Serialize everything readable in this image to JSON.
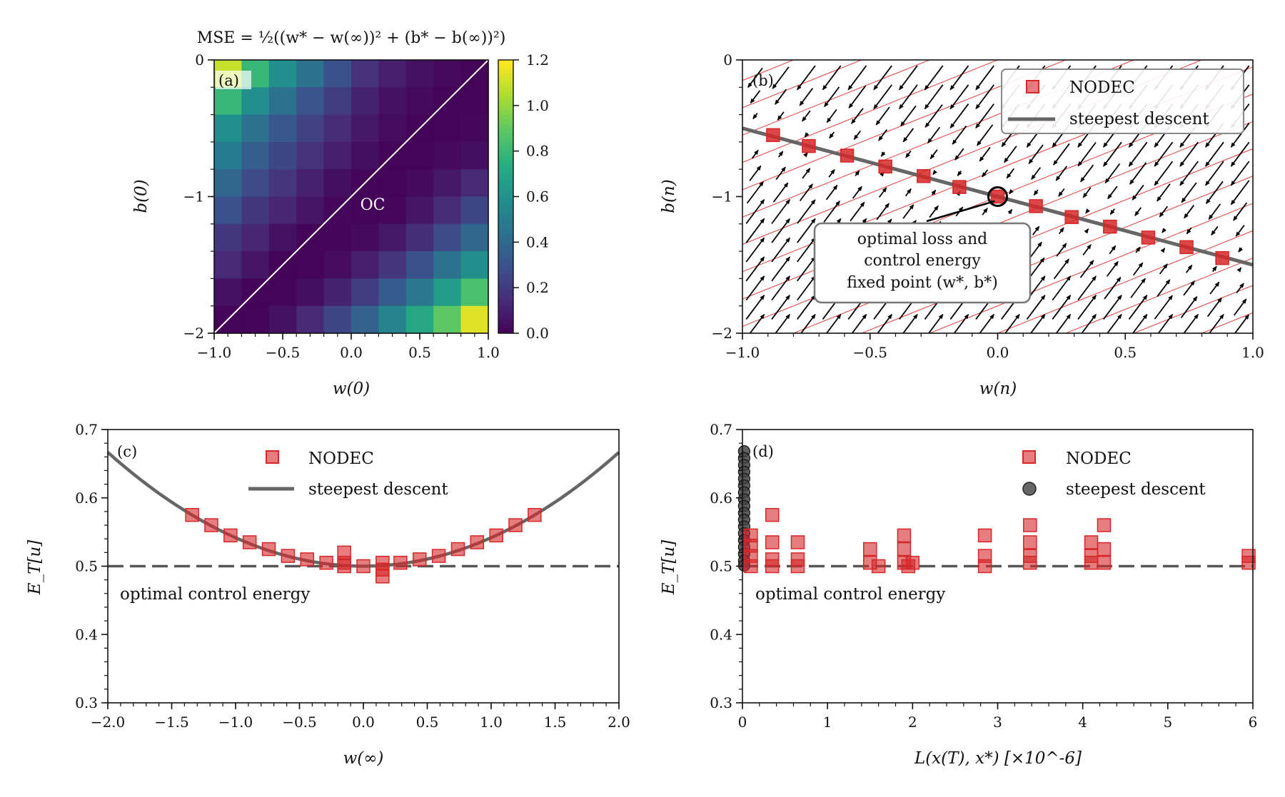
{
  "colors": {
    "nodec": "#d62728",
    "steepest": "#666666",
    "black": "#000000",
    "axis": "#111111",
    "field_line": "#dd2222"
  },
  "chart_data": [
    {
      "id": "a",
      "type": "heatmap",
      "panel_tag": "(a)",
      "title": "MSE = ½((w* − w(∞))² + (b* − b(∞))²)",
      "xlabel": "w(0)",
      "ylabel": "b(0)",
      "xlim": [
        -1.0,
        1.0
      ],
      "ylim": [
        -2,
        0
      ],
      "xticks": [
        -1.0,
        -0.5,
        0.0,
        0.5,
        1.0
      ],
      "xtick_labels": [
        "−1.0",
        "−0.5",
        "0.0",
        "0.5",
        "1.0"
      ],
      "yticks": [
        0,
        -1,
        -2
      ],
      "ytick_labels": [
        "0",
        "−1",
        "−2"
      ],
      "colorbar": {
        "range": [
          0.0,
          1.2
        ],
        "ticks": [
          1.2,
          1.0,
          0.8,
          0.6,
          0.4,
          0.2,
          0.0
        ],
        "tick_labels": [
          "1.2",
          "1.0",
          "0.8",
          "0.6",
          "0.4",
          "0.2",
          "0.0"
        ],
        "colormap": "viridis"
      },
      "annotation": "OC",
      "line": {
        "x": [
          -1,
          1
        ],
        "y": [
          -2,
          0
        ]
      },
      "grid": {
        "nx": 10,
        "ny": 10,
        "x_centers": [
          -0.9,
          -0.7,
          -0.5,
          -0.3,
          -0.1,
          0.1,
          0.3,
          0.5,
          0.7,
          0.9
        ],
        "y_centers": [
          -0.1,
          -0.3,
          -0.5,
          -0.7,
          -0.9,
          -1.1,
          -1.3,
          -1.5,
          -1.7,
          -1.9
        ],
        "values": [
          [
            1.1,
            0.8,
            0.6,
            0.45,
            0.3,
            0.18,
            0.1,
            0.06,
            0.03,
            0.01
          ],
          [
            0.8,
            0.6,
            0.45,
            0.32,
            0.22,
            0.12,
            0.06,
            0.03,
            0.01,
            0.01
          ],
          [
            0.6,
            0.45,
            0.33,
            0.24,
            0.15,
            0.08,
            0.04,
            0.01,
            0.01,
            0.02
          ],
          [
            0.5,
            0.36,
            0.26,
            0.17,
            0.1,
            0.05,
            0.01,
            0.01,
            0.03,
            0.05
          ],
          [
            0.4,
            0.28,
            0.19,
            0.11,
            0.05,
            0.01,
            0.01,
            0.03,
            0.08,
            0.14
          ],
          [
            0.3,
            0.2,
            0.13,
            0.07,
            0.02,
            0.01,
            0.02,
            0.07,
            0.15,
            0.26
          ],
          [
            0.2,
            0.13,
            0.06,
            0.01,
            0.01,
            0.03,
            0.08,
            0.16,
            0.28,
            0.4
          ],
          [
            0.14,
            0.07,
            0.01,
            0.01,
            0.04,
            0.1,
            0.19,
            0.3,
            0.45,
            0.6
          ],
          [
            0.06,
            0.01,
            0.01,
            0.05,
            0.12,
            0.22,
            0.34,
            0.48,
            0.66,
            0.85
          ],
          [
            0.01,
            0.01,
            0.06,
            0.14,
            0.25,
            0.38,
            0.54,
            0.72,
            0.9,
            1.15
          ]
        ]
      }
    },
    {
      "id": "b",
      "type": "scatter",
      "panel_tag": "(b)",
      "xlabel": "w(n)",
      "ylabel": "b(n)",
      "xlim": [
        -1.0,
        1.0
      ],
      "ylim": [
        -2,
        0
      ],
      "xticks": [
        -1.0,
        -0.5,
        0.0,
        0.5,
        1.0
      ],
      "xtick_labels": [
        "−1.0",
        "−0.5",
        "0.0",
        "0.5",
        "1.0"
      ],
      "yticks": [
        0,
        -1,
        -2
      ],
      "ytick_labels": [
        "0",
        "−1",
        "−2"
      ],
      "legend": [
        "NODEC",
        "steepest descent"
      ],
      "legend_position": "upper-right",
      "annotation_lines": [
        "optimal loss and",
        "control energy",
        "fixed point (w*, b*)"
      ],
      "fixed_point": {
        "x": 0.0,
        "y": -1.0
      },
      "steepest_line": {
        "x": [
          -1.0,
          1.0
        ],
        "y": [
          -0.5,
          -1.5
        ]
      },
      "series": [
        {
          "name": "NODEC",
          "x": [
            -0.88,
            -0.74,
            -0.59,
            -0.44,
            -0.29,
            -0.15,
            0.0,
            0.15,
            0.29,
            0.44,
            0.59,
            0.74,
            0.88
          ],
          "y": [
            -0.55,
            -0.63,
            -0.7,
            -0.78,
            -0.85,
            -0.93,
            -1.0,
            -1.07,
            -1.15,
            -1.22,
            -1.3,
            -1.37,
            -1.45
          ]
        }
      ]
    },
    {
      "id": "c",
      "type": "scatter",
      "panel_tag": "(c)",
      "xlabel": "w(∞)",
      "ylabel": "E_T[u]",
      "xlim": [
        -2.0,
        2.0
      ],
      "ylim": [
        0.3,
        0.7
      ],
      "xticks": [
        -2.0,
        -1.5,
        -1.0,
        -0.5,
        0.0,
        0.5,
        1.0,
        1.5,
        2.0
      ],
      "xtick_labels": [
        "−2.0",
        "−1.5",
        "−1.0",
        "−0.5",
        "0.0",
        "0.5",
        "1.0",
        "1.5",
        "2.0"
      ],
      "yticks": [
        0.7,
        0.6,
        0.5,
        0.4,
        0.3
      ],
      "ytick_labels": [
        "0.7",
        "0.6",
        "0.5",
        "0.4",
        "0.3"
      ],
      "legend": [
        "NODEC",
        "steepest descent"
      ],
      "legend_position": "upper-center",
      "hline": {
        "y": 0.5,
        "label": "optimal control energy"
      },
      "curve": {
        "formula": "0.5 + x^2/24",
        "x_range": [
          -2.0,
          2.0
        ]
      },
      "series": [
        {
          "name": "NODEC",
          "x": [
            -1.34,
            -1.19,
            -1.04,
            -0.89,
            -0.74,
            -0.59,
            -0.44,
            -0.29,
            -0.15,
            -0.15,
            -0.15,
            0.0,
            0.15,
            0.15,
            0.15,
            0.29,
            0.44,
            0.59,
            0.74,
            0.89,
            1.04,
            1.19,
            1.34
          ],
          "y": [
            0.575,
            0.56,
            0.545,
            0.535,
            0.525,
            0.515,
            0.51,
            0.505,
            0.52,
            0.505,
            0.5,
            0.5,
            0.505,
            0.495,
            0.485,
            0.505,
            0.51,
            0.515,
            0.525,
            0.535,
            0.545,
            0.56,
            0.575
          ]
        }
      ]
    },
    {
      "id": "d",
      "type": "scatter",
      "panel_tag": "(d)",
      "xlabel": "L(x(T), x*) [×10^-6]",
      "ylabel": "E_T[u]",
      "xlim": [
        0,
        6
      ],
      "ylim": [
        0.3,
        0.7
      ],
      "xticks": [
        0,
        1,
        2,
        3,
        4,
        5,
        6
      ],
      "xtick_labels": [
        "0",
        "1",
        "2",
        "3",
        "4",
        "5",
        "6"
      ],
      "yticks": [
        0.7,
        0.6,
        0.5,
        0.4,
        0.3
      ],
      "ytick_labels": [
        "0.7",
        "0.6",
        "0.5",
        "0.4",
        "0.3"
      ],
      "legend": [
        "NODEC",
        "steepest descent"
      ],
      "legend_position": "upper-right",
      "hline": {
        "y": 0.5,
        "label": "optimal control energy"
      },
      "series": [
        {
          "name": "NODEC",
          "x": [
            0.1,
            0.1,
            0.1,
            0.1,
            0.35,
            0.35,
            0.35,
            0.35,
            0.65,
            0.65,
            0.65,
            1.5,
            1.5,
            1.6,
            1.9,
            1.9,
            1.9,
            1.95,
            2.0,
            2.85,
            2.85,
            2.85,
            3.38,
            3.38,
            3.38,
            3.38,
            4.1,
            4.1,
            4.1,
            4.25,
            4.25,
            4.25,
            5.95,
            5.95
          ],
          "y": [
            0.545,
            0.53,
            0.515,
            0.5,
            0.575,
            0.535,
            0.51,
            0.5,
            0.535,
            0.51,
            0.5,
            0.525,
            0.505,
            0.5,
            0.545,
            0.525,
            0.505,
            0.5,
            0.505,
            0.545,
            0.515,
            0.5,
            0.56,
            0.535,
            0.515,
            0.505,
            0.535,
            0.515,
            0.505,
            0.56,
            0.525,
            0.505,
            0.515,
            0.505
          ]
        },
        {
          "name": "steepest descent",
          "x": [
            0.02,
            0.02,
            0.02,
            0.02,
            0.02,
            0.02,
            0.02,
            0.02,
            0.02,
            0.02,
            0.02,
            0.02,
            0.02,
            0.02,
            0.02,
            0.02,
            0.02,
            0.02
          ],
          "y": [
            0.668,
            0.658,
            0.648,
            0.638,
            0.628,
            0.618,
            0.608,
            0.598,
            0.588,
            0.578,
            0.568,
            0.558,
            0.548,
            0.538,
            0.528,
            0.518,
            0.508,
            0.501
          ]
        }
      ]
    }
  ]
}
